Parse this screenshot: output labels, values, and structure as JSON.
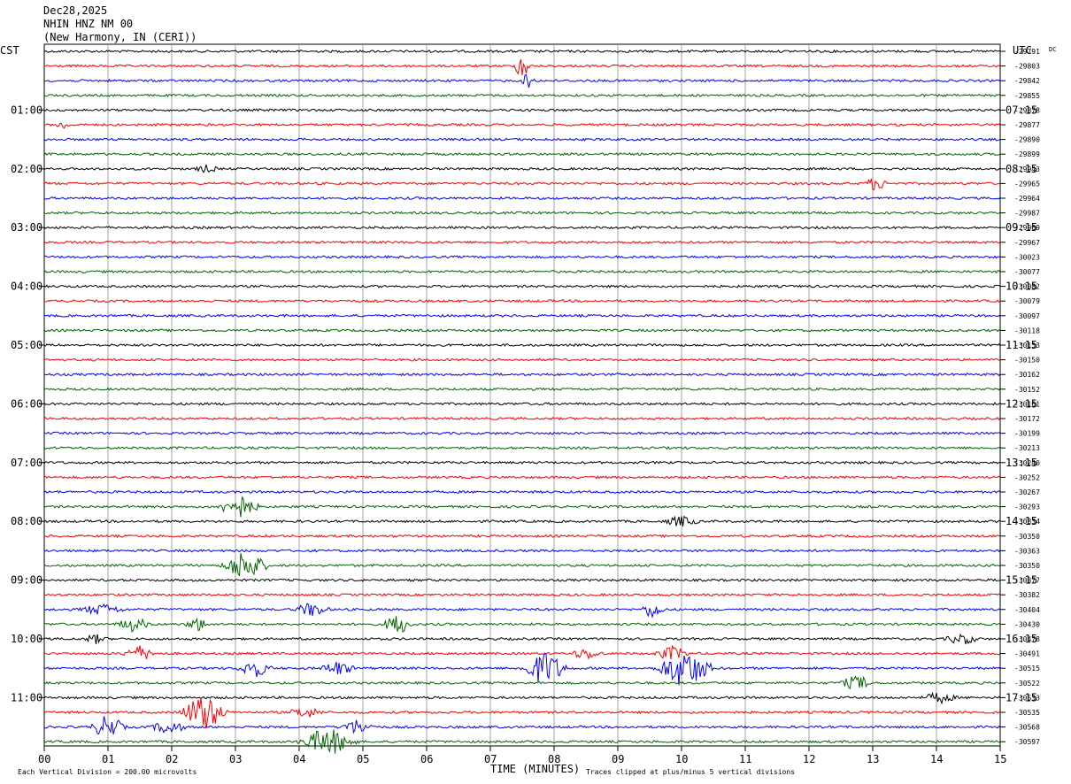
{
  "header": {
    "date": "Dec28,2025",
    "station": "NHIN HNZ NM 00",
    "location": "(New Harmony, IN (CERI))"
  },
  "chart_data": {
    "type": "line",
    "title": "",
    "xlabel": "TIME (MINUTES)",
    "ylabel": "",
    "left_label": "CST",
    "right_label": "UTC",
    "dc_label": "DC",
    "xlim": [
      0,
      15
    ],
    "x_ticks": [
      "00",
      "01",
      "02",
      "03",
      "04",
      "05",
      "06",
      "07",
      "08",
      "09",
      "10",
      "11",
      "12",
      "13",
      "14",
      "15"
    ],
    "left_hour_labels": [
      "01:00",
      "02:00",
      "03:00",
      "04:00",
      "05:00",
      "06:00",
      "07:00",
      "08:00",
      "09:00",
      "10:00",
      "11:00"
    ],
    "right_hour_labels": [
      "07:15",
      "08:15",
      "09:15",
      "10:15",
      "11:15",
      "12:15",
      "13:15",
      "14:15",
      "15:15",
      "16:15",
      "17:15"
    ],
    "hour_label_rows": [
      4,
      8,
      12,
      16,
      20,
      24,
      28,
      32,
      36,
      40,
      44
    ],
    "trace_colors": [
      "#000000",
      "#ff0000",
      "#0000ff",
      "#006400"
    ],
    "dc_offsets": [
      -29791,
      -29803,
      -29842,
      -29855,
      -29878,
      -29877,
      -29890,
      -29899,
      -29943,
      -29965,
      -29964,
      -29987,
      -29969,
      -29967,
      -30023,
      -30077,
      -30082,
      -30079,
      -30097,
      -30118,
      -30153,
      -30150,
      -30162,
      -30152,
      -30161,
      -30172,
      -30199,
      -30213,
      -30240,
      -30252,
      -30267,
      -30293,
      -30334,
      -30350,
      -30363,
      -30350,
      -30377,
      -30382,
      -30404,
      -30430,
      -30478,
      -30491,
      -30515,
      -30522,
      -30533,
      -30535,
      -30568,
      -30597
    ],
    "events": [
      {
        "row": 1,
        "minute": 7.5,
        "amp": 20,
        "dur": 0.12
      },
      {
        "row": 2,
        "minute": 7.6,
        "amp": 10,
        "dur": 0.12
      },
      {
        "row": 5,
        "minute": 0.3,
        "amp": 4,
        "dur": 0.15
      },
      {
        "row": 8,
        "minute": 2.55,
        "amp": 4,
        "dur": 0.2
      },
      {
        "row": 9,
        "minute": 13.05,
        "amp": 8,
        "dur": 0.2
      },
      {
        "row": 31,
        "minute": 3.05,
        "amp": 14,
        "dur": 0.35
      },
      {
        "row": 32,
        "minute": 10.0,
        "amp": 6,
        "dur": 0.3
      },
      {
        "row": 35,
        "minute": 3.15,
        "amp": 18,
        "dur": 0.4
      },
      {
        "row": 38,
        "minute": 0.9,
        "amp": 6,
        "dur": 0.4
      },
      {
        "row": 38,
        "minute": 4.2,
        "amp": 8,
        "dur": 0.3
      },
      {
        "row": 38,
        "minute": 9.55,
        "amp": 10,
        "dur": 0.2
      },
      {
        "row": 39,
        "minute": 1.4,
        "amp": 8,
        "dur": 0.3
      },
      {
        "row": 39,
        "minute": 2.4,
        "amp": 8,
        "dur": 0.2
      },
      {
        "row": 39,
        "minute": 5.55,
        "amp": 12,
        "dur": 0.25
      },
      {
        "row": 40,
        "minute": 0.8,
        "amp": 5,
        "dur": 0.2
      },
      {
        "row": 40,
        "minute": 14.4,
        "amp": 6,
        "dur": 0.3
      },
      {
        "row": 41,
        "minute": 1.5,
        "amp": 8,
        "dur": 0.3
      },
      {
        "row": 41,
        "minute": 8.5,
        "amp": 6,
        "dur": 0.3
      },
      {
        "row": 41,
        "minute": 9.85,
        "amp": 8,
        "dur": 0.3
      },
      {
        "row": 42,
        "minute": 3.3,
        "amp": 10,
        "dur": 0.3
      },
      {
        "row": 42,
        "minute": 4.6,
        "amp": 8,
        "dur": 0.3
      },
      {
        "row": 42,
        "minute": 7.85,
        "amp": 20,
        "dur": 0.4
      },
      {
        "row": 42,
        "minute": 10.05,
        "amp": 22,
        "dur": 0.5
      },
      {
        "row": 43,
        "minute": 12.75,
        "amp": 8,
        "dur": 0.3
      },
      {
        "row": 44,
        "minute": 14.05,
        "amp": 6,
        "dur": 0.3
      },
      {
        "row": 45,
        "minute": 2.5,
        "amp": 22,
        "dur": 0.4
      },
      {
        "row": 45,
        "minute": 4.1,
        "amp": 6,
        "dur": 0.3
      },
      {
        "row": 46,
        "minute": 1.0,
        "amp": 14,
        "dur": 0.3
      },
      {
        "row": 46,
        "minute": 1.95,
        "amp": 8,
        "dur": 0.3
      },
      {
        "row": 46,
        "minute": 4.9,
        "amp": 8,
        "dur": 0.3
      },
      {
        "row": 47,
        "minute": 4.45,
        "amp": 16,
        "dur": 0.5
      }
    ]
  },
  "footer": {
    "scale_note": "Each Vertical Division =  200.00 microvolts",
    "clip_note": "Traces clipped at plus/minus 5 vertical divisions"
  }
}
